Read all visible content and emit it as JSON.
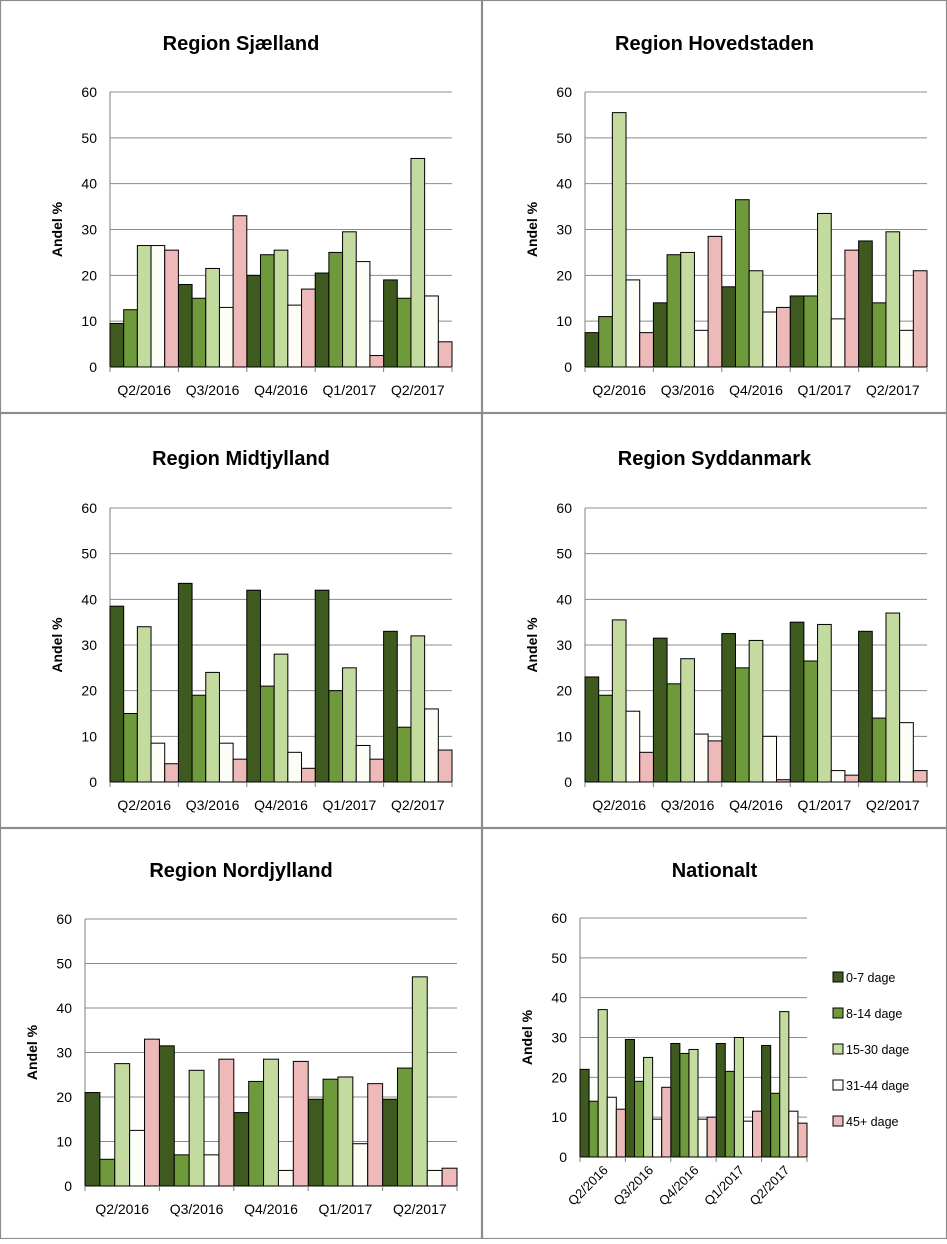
{
  "series_style": [
    {
      "name": "0-7 dage",
      "color": "#3e5a1f"
    },
    {
      "name": "8-14 dage",
      "color": "#6e9a3c"
    },
    {
      "name": "15-30 dage",
      "color": "#c4dba0"
    },
    {
      "name": "31-44 dage",
      "color": "#fbfdf6"
    },
    {
      "name": "45+ dage",
      "color": "#edb9b9"
    }
  ],
  "chart_data": [
    {
      "type": "bar",
      "title": "Region Sjælland",
      "ylabel": "Andel %",
      "ylim": [
        0,
        60
      ],
      "yticks": [
        0,
        10,
        20,
        30,
        40,
        50,
        60
      ],
      "categories": [
        "Q2/2016",
        "Q3/2016",
        "Q4/2016",
        "Q1/2017",
        "Q2/2017"
      ],
      "grid": true,
      "series": [
        {
          "name": "0-7 dage",
          "values": [
            9.5,
            18,
            20,
            20.5,
            19
          ]
        },
        {
          "name": "8-14 dage",
          "values": [
            12.5,
            15,
            24.5,
            25,
            15
          ]
        },
        {
          "name": "15-30 dage",
          "values": [
            26.5,
            21.5,
            25.5,
            29.5,
            45.5
          ]
        },
        {
          "name": "31-44 dage",
          "values": [
            26.5,
            13,
            13.5,
            23,
            15.5
          ]
        },
        {
          "name": "45+ dage",
          "values": [
            25.5,
            33,
            17,
            2.5,
            5.5
          ]
        }
      ]
    },
    {
      "type": "bar",
      "title": "Region Hovedstaden",
      "ylabel": "Andel %",
      "ylim": [
        0,
        60
      ],
      "yticks": [
        0,
        10,
        20,
        30,
        40,
        50,
        60
      ],
      "categories": [
        "Q2/2016",
        "Q3/2016",
        "Q4/2016",
        "Q1/2017",
        "Q2/2017"
      ],
      "grid": true,
      "series": [
        {
          "name": "0-7 dage",
          "values": [
            7.5,
            14,
            17.5,
            15.5,
            27.5
          ]
        },
        {
          "name": "8-14 dage",
          "values": [
            11,
            24.5,
            36.5,
            15.5,
            14
          ]
        },
        {
          "name": "15-30 dage",
          "values": [
            55.5,
            25,
            21,
            33.5,
            29.5
          ]
        },
        {
          "name": "31-44 dage",
          "values": [
            19,
            8,
            12,
            10.5,
            8
          ]
        },
        {
          "name": "45+ dage",
          "values": [
            7.5,
            28.5,
            13,
            25.5,
            21
          ]
        }
      ]
    },
    {
      "type": "bar",
      "title": "Region Midtjylland",
      "ylabel": "Andel %",
      "ylim": [
        0,
        60
      ],
      "yticks": [
        0,
        10,
        20,
        30,
        40,
        50,
        60
      ],
      "categories": [
        "Q2/2016",
        "Q3/2016",
        "Q4/2016",
        "Q1/2017",
        "Q2/2017"
      ],
      "grid": true,
      "series": [
        {
          "name": "0-7 dage",
          "values": [
            38.5,
            43.5,
            42,
            42,
            33
          ]
        },
        {
          "name": "8-14 dage",
          "values": [
            15,
            19,
            21,
            20,
            12
          ]
        },
        {
          "name": "15-30 dage",
          "values": [
            34,
            24,
            28,
            25,
            32
          ]
        },
        {
          "name": "31-44 dage",
          "values": [
            8.5,
            8.5,
            6.5,
            8,
            16
          ]
        },
        {
          "name": "45+ dage",
          "values": [
            4,
            5,
            3,
            5,
            7
          ]
        }
      ]
    },
    {
      "type": "bar",
      "title": "Region Syddanmark",
      "ylabel": "Andel %",
      "ylim": [
        0,
        60
      ],
      "yticks": [
        0,
        10,
        20,
        30,
        40,
        50,
        60
      ],
      "categories": [
        "Q2/2016",
        "Q3/2016",
        "Q4/2016",
        "Q1/2017",
        "Q2/2017"
      ],
      "grid": true,
      "series": [
        {
          "name": "0-7 dage",
          "values": [
            23,
            31.5,
            32.5,
            35,
            33
          ]
        },
        {
          "name": "8-14 dage",
          "values": [
            19,
            21.5,
            25,
            26.5,
            14
          ]
        },
        {
          "name": "15-30 dage",
          "values": [
            35.5,
            27,
            31,
            34.5,
            37
          ]
        },
        {
          "name": "31-44 dage",
          "values": [
            15.5,
            10.5,
            10,
            2.5,
            13
          ]
        },
        {
          "name": "45+ dage",
          "values": [
            6.5,
            9,
            0.5,
            1.5,
            2.5
          ]
        }
      ]
    },
    {
      "type": "bar",
      "title": "Region Nordjylland",
      "ylabel": "Andel %",
      "ylim": [
        0,
        60
      ],
      "yticks": [
        0,
        10,
        20,
        30,
        40,
        50,
        60
      ],
      "categories": [
        "Q2/2016",
        "Q3/2016",
        "Q4/2016",
        "Q1/2017",
        "Q2/2017"
      ],
      "grid": true,
      "series": [
        {
          "name": "0-7 dage",
          "values": [
            21,
            31.5,
            16.5,
            19.5,
            19.5
          ]
        },
        {
          "name": "8-14 dage",
          "values": [
            6,
            7,
            23.5,
            24,
            26.5
          ]
        },
        {
          "name": "15-30 dage",
          "values": [
            27.5,
            26,
            28.5,
            24.5,
            47
          ]
        },
        {
          "name": "31-44 dage",
          "values": [
            12.5,
            7,
            3.5,
            9.5,
            3.5
          ]
        },
        {
          "name": "45+ dage",
          "values": [
            33,
            28.5,
            28,
            23,
            4
          ]
        }
      ]
    },
    {
      "type": "bar",
      "title": "Nationalt",
      "ylabel": "Andel %",
      "ylim": [
        0,
        60
      ],
      "yticks": [
        0,
        10,
        20,
        30,
        40,
        50,
        60
      ],
      "categories": [
        "Q2/2016",
        "Q3/2016",
        "Q4/2016",
        "Q1/2017",
        "Q2/2017"
      ],
      "grid": true,
      "legend": "right",
      "series": [
        {
          "name": "0-7 dage",
          "values": [
            22,
            29.5,
            28.5,
            28.5,
            28
          ]
        },
        {
          "name": "8-14 dage",
          "values": [
            14,
            19,
            26,
            21.5,
            16
          ]
        },
        {
          "name": "15-30 dage",
          "values": [
            37,
            25,
            27,
            30,
            36.5
          ]
        },
        {
          "name": "31-44 dage",
          "values": [
            15,
            9.5,
            9.5,
            9,
            11.5
          ]
        },
        {
          "name": "45+ dage",
          "values": [
            12,
            17.5,
            10,
            11.5,
            8.5
          ]
        }
      ]
    }
  ]
}
